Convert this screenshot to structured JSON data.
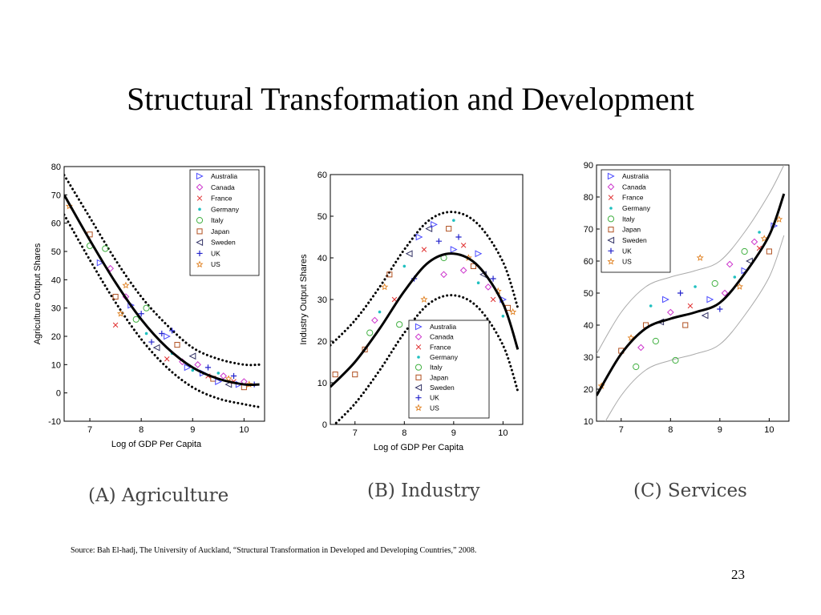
{
  "slide": {
    "title": "Structural Transformation and Development",
    "source": "Source: Bah El-hadj, The University of Auckland, “Structural Transformation in Developed and Developing Countries,” 2008.",
    "page_number": "23"
  },
  "legend_countries": [
    {
      "name": "Australia",
      "color": "#4a4aff",
      "marker": "triangle-right"
    },
    {
      "name": "Canada",
      "color": "#cc33cc",
      "marker": "diamond"
    },
    {
      "name": "France",
      "color": "#e03030",
      "marker": "x"
    },
    {
      "name": "Germany",
      "color": "#20c0c0",
      "marker": "dot"
    },
    {
      "name": "Italy",
      "color": "#40b040",
      "marker": "circle"
    },
    {
      "name": "Japan",
      "color": "#b05020",
      "marker": "square"
    },
    {
      "name": "Sweden",
      "color": "#333366",
      "marker": "triangle-left"
    },
    {
      "name": "UK",
      "color": "#2222cc",
      "marker": "plus"
    },
    {
      "name": "US",
      "color": "#e08020",
      "marker": "star"
    }
  ],
  "chart_data": [
    {
      "panel": "A",
      "type": "scatter",
      "caption": "(A) Agriculture",
      "xlabel": "Log of GDP Per Capita",
      "ylabel": "Agriculture Output Shares",
      "xlim": [
        6.5,
        10.4
      ],
      "ylim": [
        -10,
        80
      ],
      "xticks": [
        7,
        8,
        9,
        10
      ],
      "yticks": [
        -10,
        0,
        10,
        20,
        30,
        40,
        50,
        60,
        70,
        80
      ],
      "legend_position": "top-right",
      "fit": {
        "x": [
          6.5,
          7.0,
          7.5,
          8.0,
          8.5,
          9.0,
          9.5,
          10.0,
          10.3
        ],
        "y": [
          70,
          54,
          39,
          26,
          16,
          9,
          5,
          3,
          3
        ]
      },
      "band_upper": {
        "x": [
          6.5,
          7.0,
          7.5,
          8.0,
          8.5,
          9.0,
          9.5,
          10.0,
          10.3
        ],
        "y": [
          77,
          62,
          47,
          34,
          24,
          16,
          12,
          10,
          10
        ]
      },
      "band_lower": {
        "x": [
          6.5,
          7.0,
          7.5,
          8.0,
          8.5,
          9.0,
          9.5,
          10.0,
          10.3
        ],
        "y": [
          63,
          47,
          32,
          19,
          9,
          2,
          -2,
          -4,
          -5
        ]
      },
      "points": [
        [
          6.6,
          66,
          8
        ],
        [
          7.0,
          52,
          4
        ],
        [
          7.0,
          56,
          5
        ],
        [
          7.2,
          46,
          0
        ],
        [
          7.3,
          51,
          4
        ],
        [
          7.4,
          44,
          1
        ],
        [
          7.5,
          34,
          5
        ],
        [
          7.5,
          24,
          2
        ],
        [
          7.6,
          28,
          8
        ],
        [
          7.7,
          38,
          8
        ],
        [
          7.7,
          34,
          1
        ],
        [
          7.8,
          31,
          0
        ],
        [
          7.9,
          26,
          4
        ],
        [
          8.0,
          28,
          7
        ],
        [
          8.1,
          30,
          4
        ],
        [
          8.1,
          21,
          3
        ],
        [
          8.2,
          18,
          7
        ],
        [
          8.3,
          16,
          6
        ],
        [
          8.4,
          21,
          7
        ],
        [
          8.5,
          12,
          2
        ],
        [
          8.5,
          20,
          0
        ],
        [
          8.6,
          22,
          7
        ],
        [
          8.6,
          14,
          3
        ],
        [
          8.7,
          17,
          5
        ],
        [
          8.8,
          11,
          1
        ],
        [
          8.9,
          9,
          0
        ],
        [
          9.0,
          8,
          3
        ],
        [
          9.0,
          13,
          6
        ],
        [
          9.1,
          10,
          1
        ],
        [
          9.2,
          7,
          0
        ],
        [
          9.3,
          6,
          2
        ],
        [
          9.3,
          9,
          7
        ],
        [
          9.4,
          5,
          5
        ],
        [
          9.5,
          7,
          3
        ],
        [
          9.5,
          4,
          0
        ],
        [
          9.6,
          6,
          1
        ],
        [
          9.7,
          5,
          8
        ],
        [
          9.7,
          3,
          6
        ],
        [
          9.8,
          4,
          2
        ],
        [
          9.8,
          6,
          7
        ],
        [
          9.9,
          3,
          0
        ],
        [
          10.0,
          4,
          1
        ],
        [
          10.0,
          2,
          5
        ],
        [
          10.1,
          3,
          8
        ],
        [
          10.2,
          3,
          7
        ]
      ]
    },
    {
      "panel": "B",
      "type": "scatter",
      "caption": "(B) Industry",
      "xlabel": "Log of GDP Per Capita",
      "ylabel": "Industry Output Shares",
      "xlim": [
        6.5,
        10.4
      ],
      "ylim": [
        0,
        60
      ],
      "xticks": [
        7,
        8,
        9,
        10
      ],
      "yticks": [
        0,
        10,
        20,
        30,
        40,
        50,
        60
      ],
      "legend_position": "bottom-right",
      "fit": {
        "x": [
          6.5,
          7.0,
          7.5,
          8.0,
          8.5,
          9.0,
          9.5,
          10.0,
          10.3
        ],
        "y": [
          9,
          15,
          23,
          32,
          39,
          41,
          38,
          29,
          18
        ]
      },
      "band_upper": {
        "x": [
          6.5,
          7.0,
          7.5,
          8.0,
          8.5,
          9.0,
          9.5,
          10.0,
          10.3
        ],
        "y": [
          19,
          25,
          33,
          42,
          49,
          51,
          48,
          39,
          28
        ]
      },
      "band_lower": {
        "x": [
          6.5,
          7.0,
          7.5,
          8.0,
          8.5,
          9.0,
          9.5,
          10.0,
          10.3
        ],
        "y": [
          -1,
          5,
          13,
          22,
          29,
          31,
          28,
          19,
          8
        ]
      },
      "points": [
        [
          6.6,
          12,
          5
        ],
        [
          7.0,
          12,
          5
        ],
        [
          7.2,
          18,
          5
        ],
        [
          7.3,
          22,
          4
        ],
        [
          7.4,
          25,
          1
        ],
        [
          7.5,
          27,
          3
        ],
        [
          7.6,
          33,
          8
        ],
        [
          7.7,
          36,
          5
        ],
        [
          7.8,
          30,
          2
        ],
        [
          7.9,
          24,
          4
        ],
        [
          8.0,
          38,
          3
        ],
        [
          8.1,
          41,
          6
        ],
        [
          8.2,
          35,
          7
        ],
        [
          8.3,
          45,
          0
        ],
        [
          8.4,
          42,
          2
        ],
        [
          8.4,
          30,
          8
        ],
        [
          8.5,
          47,
          6
        ],
        [
          8.6,
          48,
          0
        ],
        [
          8.7,
          44,
          7
        ],
        [
          8.8,
          40,
          4
        ],
        [
          8.8,
          36,
          1
        ],
        [
          8.9,
          47,
          5
        ],
        [
          9.0,
          49,
          3
        ],
        [
          9.0,
          42,
          0
        ],
        [
          9.1,
          45,
          7
        ],
        [
          9.2,
          43,
          2
        ],
        [
          9.2,
          37,
          1
        ],
        [
          9.3,
          40,
          8
        ],
        [
          9.4,
          38,
          5
        ],
        [
          9.5,
          41,
          0
        ],
        [
          9.5,
          34,
          3
        ],
        [
          9.6,
          36,
          6
        ],
        [
          9.7,
          33,
          1
        ],
        [
          9.8,
          35,
          7
        ],
        [
          9.8,
          30,
          2
        ],
        [
          9.9,
          32,
          8
        ],
        [
          10.0,
          30,
          0
        ],
        [
          10.0,
          26,
          3
        ],
        [
          10.1,
          28,
          5
        ],
        [
          10.2,
          27,
          8
        ]
      ]
    },
    {
      "panel": "C",
      "type": "scatter",
      "caption": "(C) Services",
      "xlabel": "",
      "ylabel": "",
      "xlim": [
        6.5,
        10.4
      ],
      "ylim": [
        10,
        90
      ],
      "xticks": [
        7,
        8,
        9,
        10
      ],
      "yticks": [
        10,
        20,
        30,
        40,
        50,
        60,
        70,
        80,
        90
      ],
      "legend_position": "top-left",
      "fit": {
        "x": [
          6.5,
          7.0,
          7.5,
          8.0,
          8.5,
          9.0,
          9.5,
          10.0,
          10.3
        ],
        "y": [
          18,
          31,
          39,
          42,
          44,
          47,
          56,
          68,
          81
        ]
      },
      "band_upper": {
        "x": [
          6.5,
          7.0,
          7.5,
          8.0,
          8.5,
          9.0,
          9.5,
          10.0,
          10.3
        ],
        "y": [
          31,
          44,
          52,
          55,
          57,
          60,
          69,
          81,
          90
        ]
      },
      "band_lower": {
        "x": [
          6.5,
          7.0,
          7.5,
          8.0,
          8.5,
          9.0,
          9.5,
          10.0,
          10.3
        ],
        "y": [
          5,
          18,
          26,
          29,
          31,
          34,
          43,
          55,
          68
        ]
      },
      "points": [
        [
          6.6,
          21,
          8
        ],
        [
          7.0,
          32,
          5
        ],
        [
          7.2,
          36,
          8
        ],
        [
          7.3,
          27,
          4
        ],
        [
          7.4,
          33,
          1
        ],
        [
          7.5,
          40,
          5
        ],
        [
          7.6,
          46,
          3
        ],
        [
          7.7,
          35,
          4
        ],
        [
          7.8,
          41,
          6
        ],
        [
          7.9,
          48,
          0
        ],
        [
          8.0,
          44,
          1
        ],
        [
          8.1,
          29,
          4
        ],
        [
          8.2,
          50,
          7
        ],
        [
          8.3,
          40,
          5
        ],
        [
          8.4,
          46,
          2
        ],
        [
          8.5,
          52,
          3
        ],
        [
          8.6,
          61,
          8
        ],
        [
          8.7,
          43,
          6
        ],
        [
          8.8,
          48,
          0
        ],
        [
          8.9,
          53,
          4
        ],
        [
          9.0,
          45,
          7
        ],
        [
          9.1,
          50,
          1
        ],
        [
          9.2,
          59,
          1
        ],
        [
          9.3,
          55,
          3
        ],
        [
          9.4,
          52,
          8
        ],
        [
          9.5,
          63,
          4
        ],
        [
          9.5,
          57,
          0
        ],
        [
          9.6,
          60,
          6
        ],
        [
          9.7,
          66,
          1
        ],
        [
          9.8,
          69,
          3
        ],
        [
          9.8,
          64,
          2
        ],
        [
          9.9,
          67,
          8
        ],
        [
          10.0,
          63,
          5
        ],
        [
          10.1,
          71,
          0
        ],
        [
          10.2,
          73,
          8
        ]
      ]
    }
  ]
}
